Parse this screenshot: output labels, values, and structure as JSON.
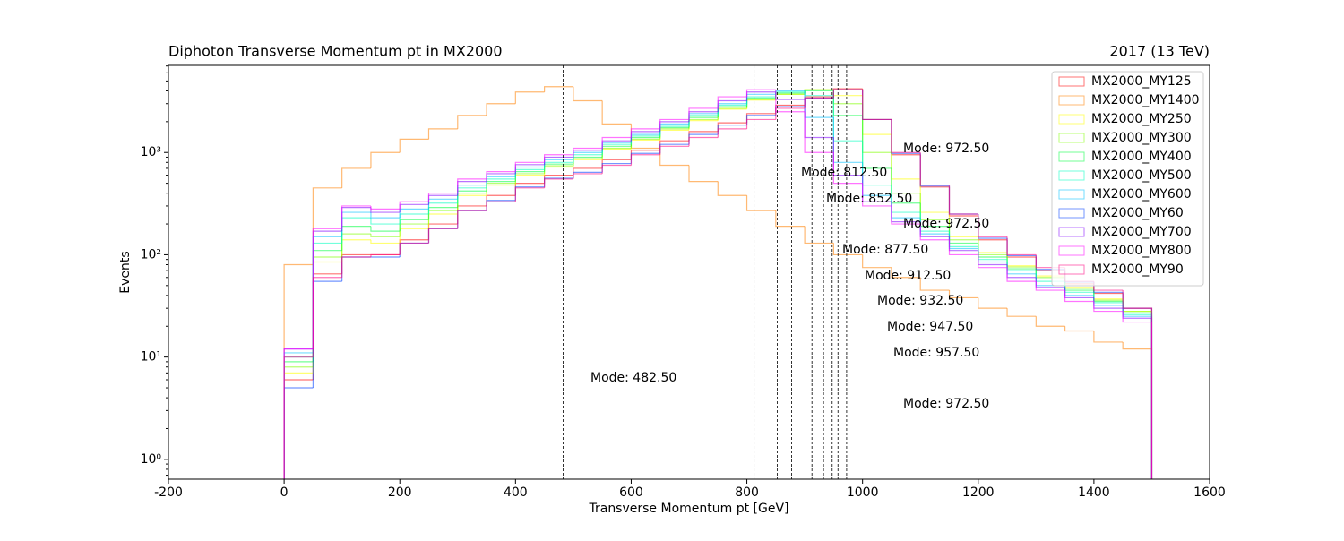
{
  "chart_data": {
    "type": "histogram",
    "title": "Diphoton Transverse Momentum pt in MX2000",
    "subtitle": "2017 (13 TeV)",
    "x_label": "Transverse Momentum pt [GeV]",
    "y_label": "Events",
    "log_y": true,
    "legend_position": "upper right",
    "bins": [
      0,
      50,
      100,
      150,
      200,
      250,
      300,
      350,
      400,
      450,
      500,
      550,
      600,
      650,
      700,
      750,
      800,
      850,
      900,
      950,
      1000,
      1050,
      1100,
      1150,
      1200,
      1250,
      1300,
      1350,
      1400,
      1450,
      1500
    ],
    "series": [
      {
        "name": "MX2000_MY125",
        "color": "#ff0000",
        "values": [
          6,
          65,
          100,
          100,
          140,
          200,
          300,
          380,
          500,
          600,
          700,
          850,
          1050,
          1300,
          1600,
          1950,
          2400,
          2900,
          3500,
          4200,
          2100,
          950,
          460,
          240,
          140,
          95,
          70,
          52,
          42,
          30
        ]
      },
      {
        "name": "MX2000_MY1400",
        "color": "#ff8000",
        "values": [
          80,
          450,
          700,
          1000,
          1350,
          1700,
          2300,
          3000,
          3900,
          4400,
          3200,
          1900,
          1100,
          750,
          520,
          380,
          270,
          190,
          130,
          100,
          75,
          60,
          45,
          38,
          30,
          25,
          20,
          18,
          14,
          12
        ]
      },
      {
        "name": "MX2000_MY250",
        "color": "#ffff00",
        "values": [
          7,
          85,
          140,
          130,
          180,
          250,
          380,
          480,
          600,
          720,
          850,
          1080,
          1320,
          1650,
          2050,
          2650,
          3250,
          3700,
          4100,
          3600,
          1500,
          550,
          260,
          150,
          105,
          78,
          62,
          48,
          37,
          28
        ]
      },
      {
        "name": "MX2000_MY300",
        "color": "#80ff00",
        "values": [
          8,
          95,
          160,
          150,
          200,
          270,
          400,
          500,
          620,
          740,
          870,
          1100,
          1350,
          1700,
          2100,
          2700,
          3300,
          3700,
          4100,
          3000,
          1000,
          400,
          220,
          140,
          100,
          76,
          60,
          47,
          36,
          28
        ]
      },
      {
        "name": "MX2000_MY400",
        "color": "#00ff40",
        "values": [
          9,
          110,
          190,
          170,
          220,
          290,
          420,
          520,
          650,
          770,
          900,
          1150,
          1400,
          1750,
          2200,
          2800,
          3400,
          3800,
          4000,
          2300,
          700,
          320,
          190,
          130,
          95,
          73,
          58,
          45,
          35,
          27
        ]
      },
      {
        "name": "MX2000_MY500",
        "color": "#00ffc0",
        "values": [
          10,
          130,
          230,
          200,
          250,
          320,
          450,
          550,
          680,
          800,
          950,
          1200,
          1450,
          1800,
          2300,
          2900,
          3500,
          3900,
          3600,
          1300,
          480,
          260,
          170,
          120,
          90,
          70,
          55,
          43,
          34,
          26
        ]
      },
      {
        "name": "MX2000_MY600",
        "color": "#00c0ff",
        "values": [
          11,
          150,
          260,
          230,
          280,
          350,
          480,
          580,
          720,
          850,
          1000,
          1250,
          1500,
          1900,
          2400,
          3000,
          3700,
          4000,
          2200,
          800,
          380,
          230,
          160,
          115,
          85,
          65,
          50,
          40,
          32,
          25
        ]
      },
      {
        "name": "MX2000_MY60",
        "color": "#0040ff",
        "values": [
          5,
          55,
          95,
          95,
          130,
          180,
          270,
          340,
          460,
          560,
          640,
          780,
          980,
          1200,
          1500,
          1850,
          2300,
          2800,
          3400,
          4100,
          2100,
          980,
          470,
          250,
          145,
          98,
          72,
          54,
          43,
          30
        ]
      },
      {
        "name": "MX2000_MY700",
        "color": "#8000ff",
        "values": [
          12,
          170,
          290,
          260,
          310,
          380,
          520,
          620,
          760,
          900,
          1050,
          1300,
          1600,
          2000,
          2500,
          3200,
          3900,
          3300,
          1400,
          600,
          330,
          210,
          150,
          110,
          80,
          60,
          48,
          38,
          30,
          24
        ]
      },
      {
        "name": "MX2000_MY800",
        "color": "#ff00ff",
        "values": [
          12,
          180,
          300,
          280,
          330,
          400,
          550,
          650,
          800,
          950,
          1100,
          1400,
          1700,
          2100,
          2700,
          3500,
          4100,
          2500,
          1000,
          500,
          300,
          200,
          140,
          100,
          75,
          55,
          45,
          35,
          28,
          22
        ]
      },
      {
        "name": "MX2000_MY90",
        "color": "#ff0080",
        "values": [
          10,
          60,
          95,
          100,
          130,
          180,
          270,
          330,
          450,
          550,
          620,
          750,
          950,
          1150,
          1400,
          1700,
          2100,
          2700,
          3400,
          4100,
          2100,
          1000,
          480,
          250,
          150,
          100,
          75,
          55,
          45,
          30
        ]
      }
    ],
    "mode_lines": [
      482.5,
      812.5,
      852.5,
      877.5,
      912.5,
      932.5,
      947.5,
      957.5,
      972.5
    ],
    "annotations": [
      "Mode: 972.50",
      "Mode: 812.50",
      "Mode: 852.50",
      "Mode: 972.50",
      "Mode: 877.50",
      "Mode: 912.50",
      "Mode: 932.50",
      "Mode: 947.50",
      "Mode: 957.50",
      "Mode: 482.50",
      "Mode: 972.50"
    ],
    "xlim": [
      -200,
      1600
    ],
    "xticks": [
      -200,
      0,
      200,
      400,
      600,
      800,
      1000,
      1200,
      1400,
      1600
    ],
    "ylim": [
      0.64,
      7100
    ],
    "yticks": [
      {
        "value": 1,
        "label": "10⁰"
      },
      {
        "value": 10,
        "label": "10¹"
      },
      {
        "value": 100,
        "label": "10²"
      },
      {
        "value": 1000,
        "label": "10³"
      }
    ]
  }
}
